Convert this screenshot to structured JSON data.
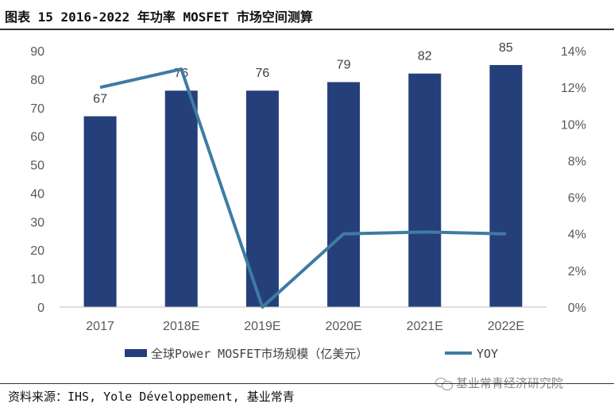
{
  "header": {
    "title": "图表 15 2016-2022 年功率 MOSFET 市场空间测算"
  },
  "chart_data": {
    "type": "bar",
    "categories": [
      "2017",
      "2018E",
      "2019E",
      "2020E",
      "2021E",
      "2022E"
    ],
    "series": [
      {
        "name": "全球Power MOSFET市场规模（亿美元）",
        "type": "bar",
        "axis": "left",
        "values": [
          67,
          76,
          76,
          79,
          82,
          85
        ],
        "color": "#253f7a"
      },
      {
        "name": "YOY",
        "type": "line",
        "axis": "right",
        "values": [
          0.12,
          0.13,
          0.0,
          0.04,
          0.041,
          0.04
        ],
        "color": "#3f7ba3"
      }
    ],
    "ylim": [
      0,
      90
    ],
    "y_ticks": [
      "0",
      "10",
      "20",
      "30",
      "40",
      "50",
      "60",
      "70",
      "80",
      "90"
    ],
    "y2lim": [
      0,
      0.14
    ],
    "y2_ticks": [
      "0%",
      "2%",
      "4%",
      "6%",
      "8%",
      "10%",
      "12%",
      "14%"
    ],
    "data_labels": [
      "67",
      "76",
      "76",
      "79",
      "82",
      "85"
    ],
    "grid": false,
    "legend": "bottom"
  },
  "footer": {
    "source": "资料来源：IHS, Yole Développement, 基业常青",
    "watermark": "基业常青经济研究院"
  }
}
